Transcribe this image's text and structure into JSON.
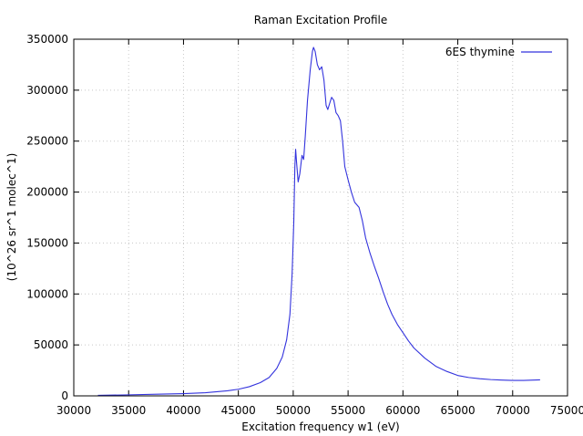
{
  "chart_data": {
    "type": "line",
    "title": "Raman Excitation Profile",
    "xlabel": "Excitation frequency w1 (eV)",
    "ylabel": "(10^26 sr^1 molec^1)",
    "xlim": [
      30000,
      75000
    ],
    "ylim": [
      0,
      350000
    ],
    "x_ticks": [
      30000,
      35000,
      40000,
      45000,
      50000,
      55000,
      60000,
      65000,
      70000,
      75000
    ],
    "y_ticks": [
      0,
      50000,
      100000,
      150000,
      200000,
      250000,
      300000,
      350000
    ],
    "grid": true,
    "legend_position": "top-right",
    "series": [
      {
        "name": "6ES thymine",
        "color": "#3333dd",
        "points": [
          [
            32200,
            500
          ],
          [
            35000,
            1000
          ],
          [
            38000,
            1700
          ],
          [
            40000,
            2200
          ],
          [
            42000,
            3100
          ],
          [
            44000,
            5000
          ],
          [
            45000,
            6500
          ],
          [
            46000,
            9000
          ],
          [
            47000,
            13000
          ],
          [
            47800,
            18000
          ],
          [
            48500,
            27000
          ],
          [
            49000,
            38000
          ],
          [
            49400,
            55000
          ],
          [
            49700,
            80000
          ],
          [
            49900,
            120000
          ],
          [
            50050,
            170000
          ],
          [
            50150,
            225000
          ],
          [
            50220,
            242000
          ],
          [
            50300,
            230000
          ],
          [
            50450,
            210000
          ],
          [
            50600,
            218000
          ],
          [
            50800,
            236000
          ],
          [
            50950,
            232000
          ],
          [
            51100,
            255000
          ],
          [
            51300,
            290000
          ],
          [
            51550,
            320000
          ],
          [
            51750,
            338000
          ],
          [
            51850,
            342000
          ],
          [
            52000,
            338000
          ],
          [
            52200,
            325000
          ],
          [
            52400,
            320000
          ],
          [
            52600,
            323000
          ],
          [
            52800,
            310000
          ],
          [
            53000,
            285000
          ],
          [
            53150,
            281000
          ],
          [
            53350,
            288000
          ],
          [
            53500,
            293000
          ],
          [
            53700,
            290000
          ],
          [
            53900,
            278000
          ],
          [
            54100,
            275000
          ],
          [
            54300,
            270000
          ],
          [
            54500,
            250000
          ],
          [
            54700,
            225000
          ],
          [
            55000,
            212000
          ],
          [
            55300,
            200000
          ],
          [
            55600,
            190000
          ],
          [
            56000,
            185000
          ],
          [
            56300,
            172000
          ],
          [
            56600,
            155000
          ],
          [
            57000,
            140000
          ],
          [
            57400,
            127000
          ],
          [
            57800,
            115000
          ],
          [
            58200,
            102000
          ],
          [
            58600,
            90000
          ],
          [
            59000,
            80000
          ],
          [
            59500,
            70000
          ],
          [
            60000,
            62000
          ],
          [
            60500,
            54000
          ],
          [
            61000,
            47000
          ],
          [
            62000,
            37000
          ],
          [
            63000,
            29000
          ],
          [
            64000,
            24000
          ],
          [
            65000,
            20000
          ],
          [
            66000,
            18000
          ],
          [
            67000,
            16800
          ],
          [
            68000,
            16000
          ],
          [
            69000,
            15500
          ],
          [
            70000,
            15200
          ],
          [
            71000,
            15200
          ],
          [
            72500,
            15700
          ]
        ]
      }
    ]
  }
}
